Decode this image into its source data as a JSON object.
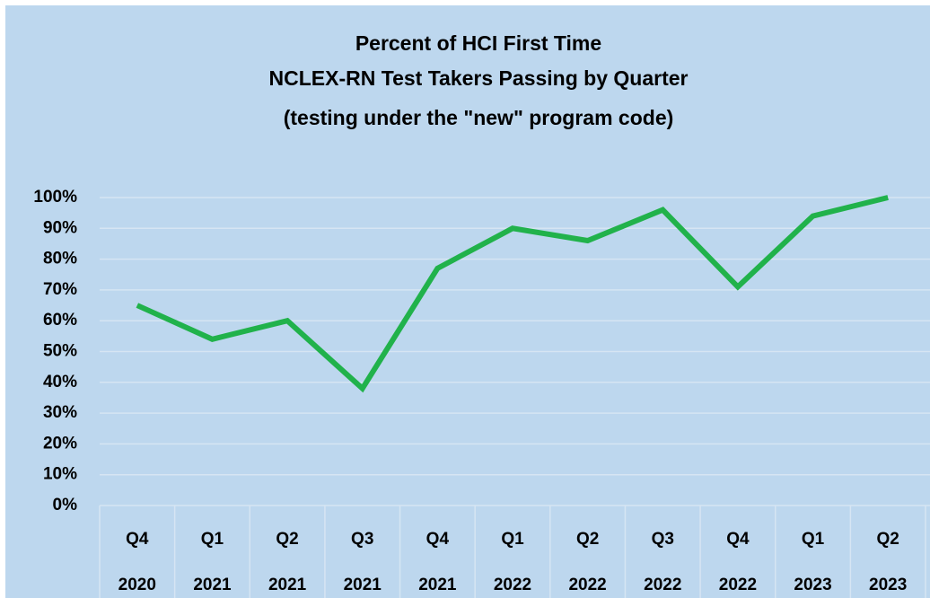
{
  "chart_data": {
    "type": "line",
    "title": [
      "Percent of HCI First Time",
      "NCLEX-RN Test Takers Passing by Quarter",
      "(testing under the \"new\" program code)"
    ],
    "categories": [
      [
        "Q4",
        "2020"
      ],
      [
        "Q1",
        "2021"
      ],
      [
        "Q2",
        "2021"
      ],
      [
        "Q3",
        "2021"
      ],
      [
        "Q4",
        "2021"
      ],
      [
        "Q1",
        "2022"
      ],
      [
        "Q2",
        "2022"
      ],
      [
        "Q3",
        "2022"
      ],
      [
        "Q4",
        "2022"
      ],
      [
        "Q1",
        "2023"
      ],
      [
        "Q2",
        "2023"
      ]
    ],
    "series": [
      {
        "color": "#21b24b",
        "values": [
          65,
          54,
          60,
          38,
          77,
          90,
          86,
          96,
          71,
          94,
          100
        ]
      }
    ],
    "ylim": [
      0,
      100
    ],
    "yticks": [
      {
        "value": 0,
        "label": "0%"
      },
      {
        "value": 10,
        "label": "10%"
      },
      {
        "value": 20,
        "label": "20%"
      },
      {
        "value": 30,
        "label": "30%"
      },
      {
        "value": 40,
        "label": "40%"
      },
      {
        "value": 50,
        "label": "50%"
      },
      {
        "value": 60,
        "label": "60%"
      },
      {
        "value": 70,
        "label": "70%"
      },
      {
        "value": 80,
        "label": "80%"
      },
      {
        "value": 90,
        "label": "90%"
      },
      {
        "value": 100,
        "label": "100%"
      }
    ],
    "grid": true
  }
}
